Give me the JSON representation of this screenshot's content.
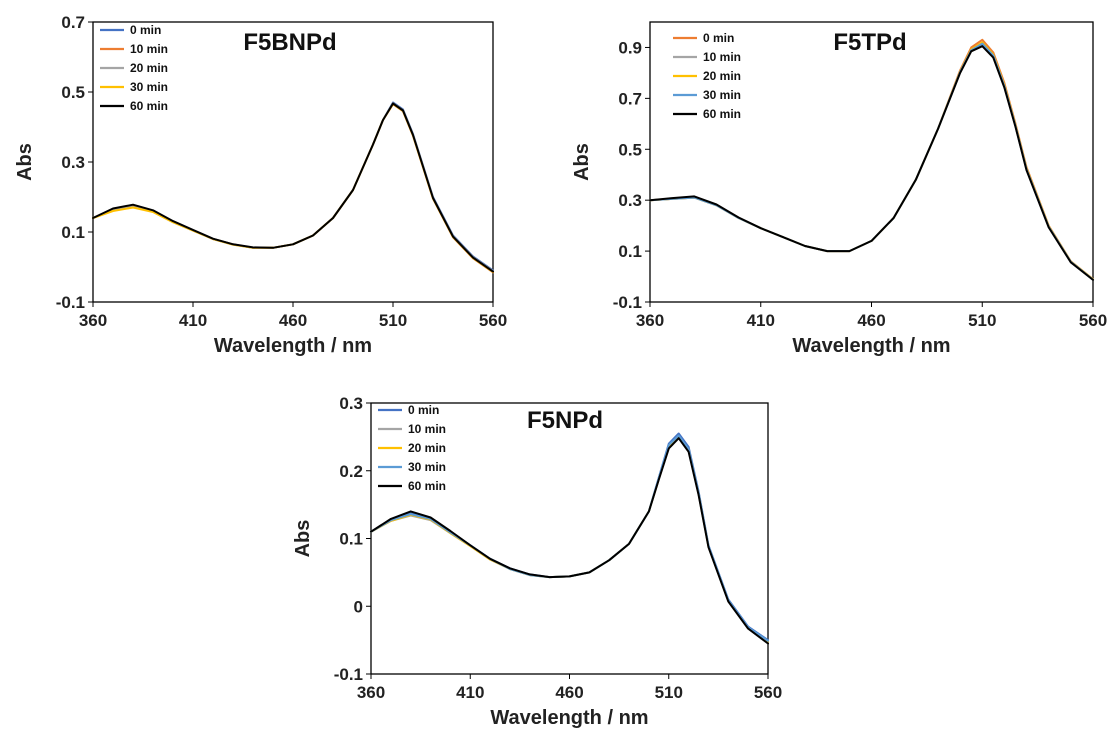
{
  "chart_data": [
    {
      "type": "line",
      "title": "F5BNPd",
      "xlabel": "Wavelength / nm",
      "ylabel": "Abs",
      "xlim": [
        360,
        560
      ],
      "ylim": [
        -0.1,
        0.7
      ],
      "xticks": [
        360,
        410,
        460,
        510,
        560
      ],
      "yticks": [
        -0.1,
        0.1,
        0.3,
        0.5,
        0.7
      ],
      "ytick_labels": [
        "-0.1",
        "0.1",
        "0.3",
        "0.5",
        "0.7"
      ],
      "legend_position": "top-left",
      "x": [
        360,
        370,
        380,
        390,
        400,
        410,
        420,
        430,
        440,
        450,
        460,
        470,
        480,
        490,
        500,
        505,
        510,
        515,
        520,
        525,
        530,
        540,
        550,
        560
      ],
      "series": [
        {
          "name": "0 min",
          "color": "#4472C4",
          "values": [
            0.14,
            0.165,
            0.175,
            0.16,
            0.13,
            0.105,
            0.08,
            0.065,
            0.055,
            0.055,
            0.065,
            0.09,
            0.14,
            0.22,
            0.35,
            0.42,
            0.47,
            0.45,
            0.38,
            0.29,
            0.2,
            0.09,
            0.03,
            -0.01
          ]
        },
        {
          "name": "10 min",
          "color": "#ED7D31",
          "values": [
            0.14,
            0.165,
            0.175,
            0.16,
            0.13,
            0.105,
            0.08,
            0.065,
            0.055,
            0.055,
            0.065,
            0.09,
            0.14,
            0.22,
            0.35,
            0.42,
            0.465,
            0.445,
            0.375,
            0.285,
            0.195,
            0.085,
            0.025,
            -0.015
          ]
        },
        {
          "name": "20 min",
          "color": "#A5A5A5",
          "values": [
            0.14,
            0.163,
            0.172,
            0.158,
            0.128,
            0.104,
            0.08,
            0.064,
            0.055,
            0.055,
            0.065,
            0.09,
            0.14,
            0.22,
            0.35,
            0.42,
            0.468,
            0.448,
            0.378,
            0.288,
            0.198,
            0.088,
            0.028,
            -0.012
          ]
        },
        {
          "name": "30 min",
          "color": "#FFC000",
          "values": [
            0.14,
            0.16,
            0.17,
            0.157,
            0.128,
            0.104,
            0.08,
            0.064,
            0.055,
            0.055,
            0.065,
            0.09,
            0.14,
            0.22,
            0.35,
            0.42,
            0.466,
            0.446,
            0.376,
            0.286,
            0.196,
            0.086,
            0.026,
            -0.014
          ]
        },
        {
          "name": "60 min",
          "color": "#000000",
          "values": [
            0.14,
            0.167,
            0.178,
            0.162,
            0.131,
            0.106,
            0.081,
            0.065,
            0.056,
            0.055,
            0.065,
            0.09,
            0.14,
            0.22,
            0.35,
            0.42,
            0.467,
            0.447,
            0.377,
            0.287,
            0.197,
            0.087,
            0.027,
            -0.013
          ]
        }
      ]
    },
    {
      "type": "line",
      "title": "F5TPd",
      "xlabel": "Wavelength / nm",
      "ylabel": "Abs",
      "xlim": [
        360,
        560
      ],
      "ylim": [
        -0.1,
        1.0
      ],
      "xticks": [
        360,
        410,
        460,
        510,
        560
      ],
      "yticks": [
        -0.1,
        0.1,
        0.3,
        0.5,
        0.7,
        0.9
      ],
      "ytick_labels": [
        "-0.1",
        "0.1",
        "0.3",
        "0.5",
        "0.7",
        "0.9"
      ],
      "legend_position": "top-left",
      "x": [
        360,
        370,
        380,
        390,
        400,
        410,
        420,
        430,
        440,
        450,
        460,
        470,
        480,
        490,
        500,
        505,
        510,
        515,
        520,
        525,
        530,
        540,
        550,
        560
      ],
      "series": [
        {
          "name": "0 min",
          "color": "#ED7D31",
          "values": [
            0.3,
            0.305,
            0.31,
            0.28,
            0.23,
            0.19,
            0.155,
            0.12,
            0.1,
            0.1,
            0.14,
            0.23,
            0.38,
            0.58,
            0.81,
            0.9,
            0.93,
            0.88,
            0.76,
            0.6,
            0.43,
            0.2,
            0.06,
            -0.01
          ]
        },
        {
          "name": "10 min",
          "color": "#A5A5A5",
          "values": [
            0.3,
            0.305,
            0.31,
            0.28,
            0.23,
            0.19,
            0.155,
            0.12,
            0.1,
            0.1,
            0.14,
            0.23,
            0.38,
            0.58,
            0.8,
            0.885,
            0.91,
            0.865,
            0.745,
            0.59,
            0.42,
            0.195,
            0.058,
            -0.012
          ]
        },
        {
          "name": "20 min",
          "color": "#FFC000",
          "values": [
            0.3,
            0.305,
            0.31,
            0.28,
            0.23,
            0.19,
            0.155,
            0.12,
            0.1,
            0.1,
            0.14,
            0.23,
            0.38,
            0.58,
            0.805,
            0.892,
            0.92,
            0.872,
            0.752,
            0.595,
            0.425,
            0.198,
            0.059,
            -0.011
          ]
        },
        {
          "name": "30 min",
          "color": "#5B9BD5",
          "values": [
            0.3,
            0.305,
            0.31,
            0.28,
            0.23,
            0.19,
            0.155,
            0.12,
            0.1,
            0.1,
            0.14,
            0.23,
            0.38,
            0.58,
            0.803,
            0.889,
            0.915,
            0.868,
            0.748,
            0.592,
            0.422,
            0.196,
            0.058,
            -0.012
          ]
        },
        {
          "name": "60 min",
          "color": "#000000",
          "values": [
            0.3,
            0.308,
            0.315,
            0.283,
            0.232,
            0.19,
            0.155,
            0.12,
            0.1,
            0.1,
            0.14,
            0.23,
            0.38,
            0.58,
            0.8,
            0.885,
            0.905,
            0.86,
            0.742,
            0.588,
            0.418,
            0.193,
            0.056,
            -0.013
          ]
        }
      ]
    },
    {
      "type": "line",
      "title": "F5NPd",
      "xlabel": "Wavelength / nm",
      "ylabel": "Abs",
      "xlim": [
        360,
        560
      ],
      "ylim": [
        -0.1,
        0.3
      ],
      "xticks": [
        360,
        410,
        460,
        510,
        560
      ],
      "yticks": [
        -0.1,
        0,
        0.1,
        0.2,
        0.3
      ],
      "ytick_labels": [
        "-0.1",
        "0",
        "0.1",
        "0.2",
        "0.3"
      ],
      "legend_position": "top-left",
      "x": [
        360,
        370,
        380,
        390,
        400,
        410,
        420,
        430,
        440,
        450,
        460,
        470,
        480,
        490,
        500,
        505,
        510,
        515,
        520,
        525,
        530,
        540,
        550,
        560
      ],
      "series": [
        {
          "name": "0 min",
          "color": "#4472C4",
          "values": [
            0.11,
            0.128,
            0.138,
            0.13,
            0.11,
            0.09,
            0.07,
            0.056,
            0.047,
            0.043,
            0.044,
            0.05,
            0.068,
            0.092,
            0.14,
            0.19,
            0.24,
            0.255,
            0.235,
            0.17,
            0.09,
            0.01,
            -0.03,
            -0.05
          ]
        },
        {
          "name": "10 min",
          "color": "#A5A5A5",
          "values": [
            0.11,
            0.126,
            0.134,
            0.127,
            0.108,
            0.089,
            0.069,
            0.055,
            0.046,
            0.043,
            0.044,
            0.05,
            0.068,
            0.092,
            0.14,
            0.188,
            0.235,
            0.25,
            0.23,
            0.166,
            0.088,
            0.008,
            -0.032,
            -0.052
          ]
        },
        {
          "name": "20 min",
          "color": "#FFC000",
          "values": [
            0.11,
            0.126,
            0.135,
            0.128,
            0.108,
            0.089,
            0.069,
            0.055,
            0.046,
            0.043,
            0.044,
            0.05,
            0.068,
            0.092,
            0.14,
            0.188,
            0.236,
            0.251,
            0.231,
            0.167,
            0.088,
            0.008,
            -0.032,
            -0.052
          ]
        },
        {
          "name": "30 min",
          "color": "#5B9BD5",
          "values": [
            0.11,
            0.127,
            0.136,
            0.129,
            0.109,
            0.09,
            0.07,
            0.055,
            0.046,
            0.043,
            0.044,
            0.05,
            0.068,
            0.092,
            0.14,
            0.189,
            0.238,
            0.252,
            0.232,
            0.168,
            0.089,
            0.009,
            -0.031,
            -0.051
          ]
        },
        {
          "name": "60 min",
          "color": "#000000",
          "values": [
            0.11,
            0.129,
            0.14,
            0.131,
            0.111,
            0.09,
            0.07,
            0.056,
            0.047,
            0.043,
            0.044,
            0.05,
            0.068,
            0.092,
            0.14,
            0.187,
            0.233,
            0.248,
            0.228,
            0.165,
            0.087,
            0.007,
            -0.033,
            -0.055
          ]
        }
      ]
    }
  ]
}
